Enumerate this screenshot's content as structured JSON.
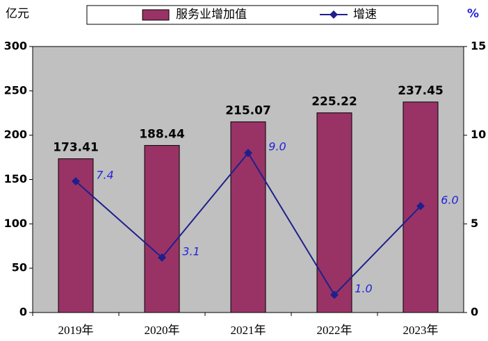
{
  "chart_data": {
    "type": "bar",
    "y_label": "亿元",
    "y2_label": "%",
    "categories": [
      "2019年",
      "2020年",
      "2021年",
      "2022年",
      "2023年"
    ],
    "series": [
      {
        "name": "服务业增加值",
        "type": "bar",
        "color": "#993366",
        "values": [
          173.41,
          188.44,
          215.07,
          225.22,
          237.45
        ]
      },
      {
        "name": "增速",
        "type": "line",
        "axis": "y2",
        "color": "#1f1f8c",
        "label_color": "#2222dd",
        "values": [
          7.4,
          3.1,
          9.0,
          1.0,
          6.0
        ],
        "value_labels": [
          "7.4",
          "3.1",
          "9.0",
          "1.0",
          "6.0"
        ]
      }
    ],
    "ylim": [
      0,
      300
    ],
    "yticks": [
      0,
      50,
      100,
      150,
      200,
      250,
      300
    ],
    "y2lim": [
      0,
      15
    ],
    "y2ticks": [
      0,
      5,
      10,
      15
    ],
    "plot_background": "#c0c0c0",
    "grid": false
  }
}
